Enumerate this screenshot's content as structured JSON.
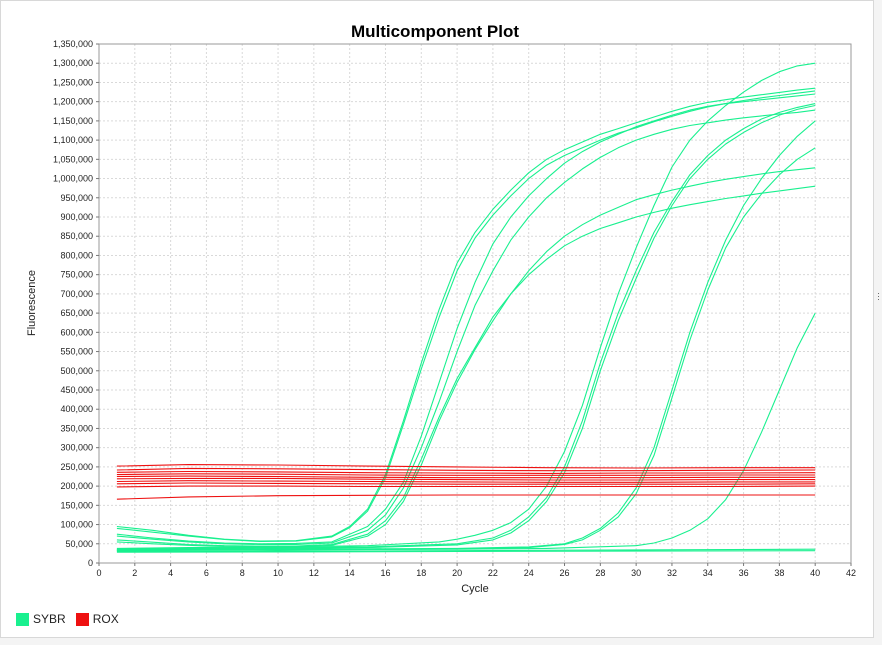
{
  "chart_data": {
    "type": "line",
    "title": "Multicomponent Plot",
    "xlabel": "Cycle",
    "ylabel": "Fluorescence",
    "xlim": [
      0,
      42
    ],
    "ylim": [
      0,
      1350000
    ],
    "x_ticks": [
      0,
      2,
      4,
      6,
      8,
      10,
      12,
      14,
      16,
      18,
      20,
      22,
      24,
      26,
      28,
      30,
      32,
      34,
      36,
      38,
      40,
      42
    ],
    "y_ticks": [
      0,
      50000,
      100000,
      150000,
      200000,
      250000,
      300000,
      350000,
      400000,
      450000,
      500000,
      550000,
      600000,
      650000,
      700000,
      750000,
      800000,
      850000,
      900000,
      950000,
      1000000,
      1050000,
      1100000,
      1150000,
      1200000,
      1250000,
      1300000,
      1350000
    ],
    "y_tick_labels": [
      "0",
      "50,000",
      "100,000",
      "150,000",
      "200,000",
      "250,000",
      "300,000",
      "350,000",
      "400,000",
      "450,000",
      "500,000",
      "550,000",
      "600,000",
      "650,000",
      "700,000",
      "750,000",
      "800,000",
      "850,000",
      "900,000",
      "950,000",
      "1,000,000",
      "1,050,000",
      "1,100,000",
      "1,150,000",
      "1,200,000",
      "1,250,000",
      "1,300,000",
      "1,350,000"
    ],
    "grid": true,
    "legend_position": "bottom-left",
    "colors": {
      "SYBR": "#19f08f",
      "ROX": "#ee1111"
    },
    "legend": [
      {
        "name": "SYBR",
        "color": "#19f08f"
      },
      {
        "name": "ROX",
        "color": "#ee1111"
      }
    ],
    "series": [
      {
        "name": "SYBR",
        "x": [
          1,
          3,
          5,
          7,
          9,
          11,
          13,
          14,
          15,
          16,
          17,
          18,
          19,
          20,
          21,
          22,
          23,
          24,
          25,
          26,
          27,
          28,
          29,
          30,
          31,
          32,
          33,
          34,
          35,
          36,
          37,
          38,
          39,
          40
        ],
        "y": [
          95000,
          85000,
          72000,
          62000,
          57000,
          58000,
          70000,
          95000,
          140000,
          230000,
          370000,
          520000,
          660000,
          780000,
          860000,
          920000,
          970000,
          1015000,
          1050000,
          1075000,
          1095000,
          1115000,
          1130000,
          1145000,
          1160000,
          1175000,
          1188000,
          1198000,
          1205000,
          1212000,
          1218000,
          1224000,
          1230000,
          1235000
        ]
      },
      {
        "name": "SYBR",
        "x": [
          1,
          3,
          5,
          7,
          9,
          11,
          13,
          14,
          15,
          16,
          17,
          18,
          19,
          20,
          21,
          22,
          23,
          24,
          25,
          26,
          27,
          28,
          29,
          30,
          31,
          32,
          33,
          34,
          35,
          36,
          37,
          38,
          39,
          40
        ],
        "y": [
          90000,
          80000,
          70000,
          61000,
          56000,
          57000,
          68000,
          92000,
          135000,
          222000,
          360000,
          505000,
          640000,
          760000,
          845000,
          905000,
          955000,
          1000000,
          1035000,
          1060000,
          1080000,
          1100000,
          1118000,
          1132000,
          1148000,
          1162000,
          1175000,
          1186000,
          1195000,
          1203000,
          1210000,
          1216000,
          1222000,
          1228000
        ]
      },
      {
        "name": "SYBR",
        "x": [
          1,
          3,
          5,
          7,
          9,
          11,
          13,
          15,
          16,
          17,
          18,
          19,
          20,
          21,
          22,
          23,
          24,
          25,
          26,
          27,
          28,
          29,
          30,
          31,
          32,
          33,
          34,
          35,
          36,
          37,
          38,
          39,
          40
        ],
        "y": [
          75000,
          65000,
          57000,
          52000,
          50000,
          51000,
          55000,
          95000,
          140000,
          210000,
          330000,
          470000,
          610000,
          730000,
          830000,
          900000,
          955000,
          1000000,
          1040000,
          1070000,
          1095000,
          1115000,
          1135000,
          1150000,
          1165000,
          1178000,
          1188000,
          1195000,
          1200000,
          1205000,
          1210000,
          1215000,
          1220000
        ]
      },
      {
        "name": "SYBR",
        "x": [
          1,
          3,
          5,
          7,
          9,
          11,
          13,
          15,
          16,
          17,
          18,
          19,
          20,
          21,
          22,
          23,
          24,
          25,
          26,
          27,
          28,
          29,
          30,
          31,
          32,
          33,
          34,
          35,
          36,
          37,
          38,
          39,
          40
        ],
        "y": [
          70000,
          62000,
          55000,
          50000,
          48000,
          48000,
          52000,
          85000,
          125000,
          195000,
          300000,
          420000,
          550000,
          670000,
          760000,
          840000,
          900000,
          950000,
          990000,
          1025000,
          1055000,
          1080000,
          1100000,
          1115000,
          1128000,
          1138000,
          1145000,
          1152000,
          1158000,
          1163000,
          1168000,
          1172000,
          1178000
        ]
      },
      {
        "name": "SYBR",
        "x": [
          1,
          3,
          5,
          7,
          9,
          11,
          13,
          15,
          16,
          17,
          18,
          19,
          20,
          21,
          22,
          23,
          24,
          25,
          26,
          27,
          28,
          29,
          30,
          31,
          32,
          33,
          34,
          35,
          36,
          37,
          38,
          39,
          40
        ],
        "y": [
          60000,
          54000,
          48000,
          45000,
          44000,
          44000,
          48000,
          75000,
          110000,
          170000,
          270000,
          380000,
          480000,
          560000,
          640000,
          700000,
          750000,
          790000,
          825000,
          850000,
          870000,
          885000,
          900000,
          912000,
          923000,
          932000,
          940000,
          948000,
          955000,
          962000,
          968000,
          974000,
          980000
        ]
      },
      {
        "name": "SYBR",
        "x": [
          1,
          3,
          5,
          7,
          9,
          11,
          13,
          15,
          16,
          17,
          18,
          19,
          20,
          21,
          22,
          23,
          24,
          25,
          26,
          27,
          28,
          29,
          30,
          31,
          32,
          33,
          34,
          35,
          36,
          37,
          38,
          39,
          40
        ],
        "y": [
          55000,
          50000,
          46000,
          43000,
          42000,
          42000,
          46000,
          70000,
          100000,
          160000,
          255000,
          370000,
          470000,
          555000,
          630000,
          700000,
          760000,
          810000,
          850000,
          880000,
          905000,
          925000,
          945000,
          958000,
          970000,
          980000,
          990000,
          998000,
          1005000,
          1012000,
          1018000,
          1023000,
          1028000
        ]
      },
      {
        "name": "SYBR",
        "x": [
          1,
          5,
          10,
          15,
          19,
          20,
          21,
          22,
          23,
          24,
          25,
          26,
          27,
          28,
          29,
          30,
          31,
          32,
          33,
          34,
          35,
          36,
          37,
          38,
          39,
          40
        ],
        "y": [
          38000,
          40000,
          42000,
          45000,
          55000,
          62000,
          72000,
          85000,
          105000,
          140000,
          200000,
          290000,
          410000,
          560000,
          700000,
          820000,
          930000,
          1030000,
          1100000,
          1150000,
          1190000,
          1225000,
          1255000,
          1278000,
          1293000,
          1300000
        ]
      },
      {
        "name": "SYBR",
        "x": [
          1,
          5,
          10,
          15,
          20,
          22,
          23,
          24,
          25,
          26,
          27,
          28,
          29,
          30,
          31,
          32,
          33,
          34,
          35,
          36,
          37,
          38,
          39,
          40
        ],
        "y": [
          36000,
          38000,
          40000,
          42000,
          50000,
          65000,
          85000,
          120000,
          170000,
          250000,
          370000,
          520000,
          650000,
          760000,
          860000,
          940000,
          1010000,
          1060000,
          1100000,
          1130000,
          1155000,
          1172000,
          1185000,
          1195000
        ]
      },
      {
        "name": "SYBR",
        "x": [
          1,
          5,
          10,
          15,
          20,
          22,
          23,
          24,
          25,
          26,
          27,
          28,
          29,
          30,
          31,
          32,
          33,
          34,
          35,
          36,
          37,
          38,
          39,
          40
        ],
        "y": [
          34000,
          36000,
          38000,
          40000,
          47000,
          60000,
          78000,
          110000,
          160000,
          235000,
          350000,
          500000,
          630000,
          740000,
          845000,
          930000,
          1000000,
          1050000,
          1090000,
          1120000,
          1145000,
          1165000,
          1180000,
          1190000
        ]
      },
      {
        "name": "SYBR",
        "x": [
          1,
          5,
          10,
          15,
          20,
          24,
          26,
          27,
          28,
          29,
          30,
          31,
          32,
          33,
          34,
          35,
          36,
          37,
          38,
          39,
          40
        ],
        "y": [
          34000,
          35000,
          36000,
          37000,
          38000,
          42000,
          50000,
          65000,
          90000,
          130000,
          195000,
          300000,
          450000,
          600000,
          730000,
          840000,
          930000,
          1000000,
          1060000,
          1110000,
          1150000
        ]
      },
      {
        "name": "SYBR",
        "x": [
          1,
          5,
          10,
          15,
          20,
          24,
          26,
          27,
          28,
          29,
          30,
          31,
          32,
          33,
          34,
          35,
          36,
          37,
          38,
          39,
          40
        ],
        "y": [
          33000,
          34000,
          35000,
          36000,
          37000,
          40000,
          48000,
          60000,
          85000,
          120000,
          180000,
          280000,
          430000,
          580000,
          710000,
          820000,
          900000,
          960000,
          1010000,
          1050000,
          1080000
        ]
      },
      {
        "name": "SYBR",
        "x": [
          1,
          5,
          10,
          15,
          20,
          25,
          30,
          31,
          32,
          33,
          34,
          35,
          36,
          37,
          38,
          39,
          40
        ],
        "y": [
          32000,
          33000,
          34000,
          35000,
          36000,
          38000,
          45000,
          52000,
          65000,
          85000,
          115000,
          165000,
          240000,
          340000,
          450000,
          560000,
          650000
        ]
      },
      {
        "name": "SYBR",
        "x": [
          1,
          10,
          20,
          30,
          40
        ],
        "y": [
          30000,
          31000,
          32000,
          34000,
          36000
        ]
      },
      {
        "name": "SYBR",
        "x": [
          1,
          10,
          20,
          30,
          40
        ],
        "y": [
          28000,
          29000,
          30000,
          31000,
          32000
        ]
      },
      {
        "name": "ROX",
        "x": [
          1,
          5,
          10,
          15,
          20,
          25,
          30,
          35,
          40
        ],
        "y": [
          252000,
          256000,
          255000,
          252000,
          250000,
          248000,
          247000,
          248000,
          248000
        ]
      },
      {
        "name": "ROX",
        "x": [
          1,
          5,
          10,
          15,
          20,
          25,
          30,
          35,
          40
        ],
        "y": [
          242000,
          246000,
          245000,
          243000,
          241000,
          240000,
          240000,
          241000,
          242000
        ]
      },
      {
        "name": "ROX",
        "x": [
          1,
          5,
          10,
          15,
          20,
          25,
          30,
          35,
          40
        ],
        "y": [
          236000,
          238000,
          237000,
          235000,
          234000,
          233000,
          234000,
          234000,
          235000
        ]
      },
      {
        "name": "ROX",
        "x": [
          1,
          5,
          10,
          15,
          20,
          25,
          30,
          35,
          40
        ],
        "y": [
          230000,
          232000,
          231000,
          229000,
          228000,
          228000,
          228000,
          229000,
          229000
        ]
      },
      {
        "name": "ROX",
        "x": [
          1,
          5,
          10,
          15,
          20,
          25,
          30,
          35,
          40
        ],
        "y": [
          225000,
          226000,
          225000,
          223000,
          222000,
          222000,
          222000,
          223000,
          223000
        ]
      },
      {
        "name": "ROX",
        "x": [
          1,
          5,
          10,
          15,
          20,
          25,
          30,
          35,
          40
        ],
        "y": [
          219000,
          220000,
          220000,
          218000,
          217000,
          216000,
          216000,
          217000,
          217000
        ]
      },
      {
        "name": "ROX",
        "x": [
          1,
          5,
          10,
          15,
          20,
          25,
          30,
          35,
          40
        ],
        "y": [
          212000,
          214000,
          213000,
          212000,
          211000,
          210000,
          210000,
          211000,
          211000
        ]
      },
      {
        "name": "ROX",
        "x": [
          1,
          5,
          10,
          15,
          20,
          25,
          30,
          35,
          40
        ],
        "y": [
          206000,
          208000,
          207000,
          206000,
          205000,
          205000,
          205000,
          205000,
          206000
        ]
      },
      {
        "name": "ROX",
        "x": [
          1,
          5,
          10,
          15,
          20,
          25,
          30,
          35,
          40
        ],
        "y": [
          198000,
          200000,
          200000,
          199000,
          199000,
          199000,
          199000,
          199000,
          200000
        ]
      },
      {
        "name": "ROX",
        "x": [
          1,
          5,
          10,
          15,
          20,
          25,
          30,
          35,
          40
        ],
        "y": [
          166000,
          172000,
          175000,
          176000,
          177000,
          177000,
          177000,
          177000,
          177000
        ]
      }
    ]
  }
}
